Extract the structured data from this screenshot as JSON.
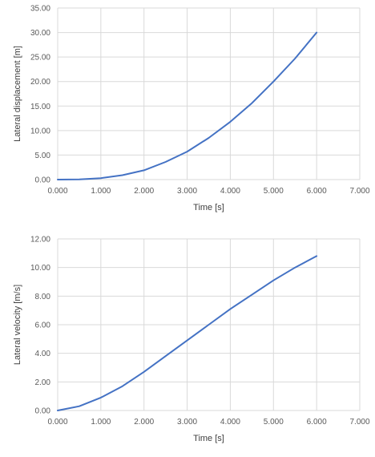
{
  "chart_data": [
    {
      "type": "line",
      "title": "",
      "xlabel": "Time [s]",
      "ylabel": "Lateral displacement [m]",
      "xlim": [
        0,
        7
      ],
      "ylim": [
        0,
        35
      ],
      "x_ticks": [
        "0.000",
        "1.000",
        "2.000",
        "3.000",
        "4.000",
        "5.000",
        "6.000",
        "7.000"
      ],
      "y_ticks": [
        "0.00",
        "5.00",
        "10.00",
        "15.00",
        "20.00",
        "25.00",
        "30.00",
        "35.00"
      ],
      "grid": true,
      "legend": "none",
      "color": "#4472c4",
      "series": [
        {
          "x": [
            0,
            0.5,
            1.0,
            1.5,
            2.0,
            2.5,
            3.0,
            3.5,
            4.0,
            4.5,
            5.0,
            5.5,
            6.0
          ],
          "y": [
            0,
            0.05,
            0.3,
            0.9,
            1.9,
            3.6,
            5.7,
            8.5,
            11.8,
            15.6,
            20.0,
            24.7,
            30.0
          ]
        }
      ]
    },
    {
      "type": "line",
      "title": "",
      "xlabel": "Time [s]",
      "ylabel": "Lateral velocity [m/s]",
      "xlim": [
        0,
        7
      ],
      "ylim": [
        0,
        12
      ],
      "x_ticks": [
        "0.000",
        "1.000",
        "2.000",
        "3.000",
        "4.000",
        "5.000",
        "6.000",
        "7.000"
      ],
      "y_ticks": [
        "0.00",
        "2.00",
        "4.00",
        "6.00",
        "8.00",
        "10.00",
        "12.00"
      ],
      "grid": true,
      "legend": "none",
      "color": "#4472c4",
      "series": [
        {
          "x": [
            0,
            0.5,
            1.0,
            1.5,
            2.0,
            2.5,
            3.0,
            3.5,
            4.0,
            4.5,
            5.0,
            5.5,
            6.0
          ],
          "y": [
            0,
            0.3,
            0.9,
            1.7,
            2.7,
            3.8,
            4.9,
            6.0,
            7.1,
            8.1,
            9.1,
            10.0,
            10.8
          ]
        }
      ]
    }
  ]
}
